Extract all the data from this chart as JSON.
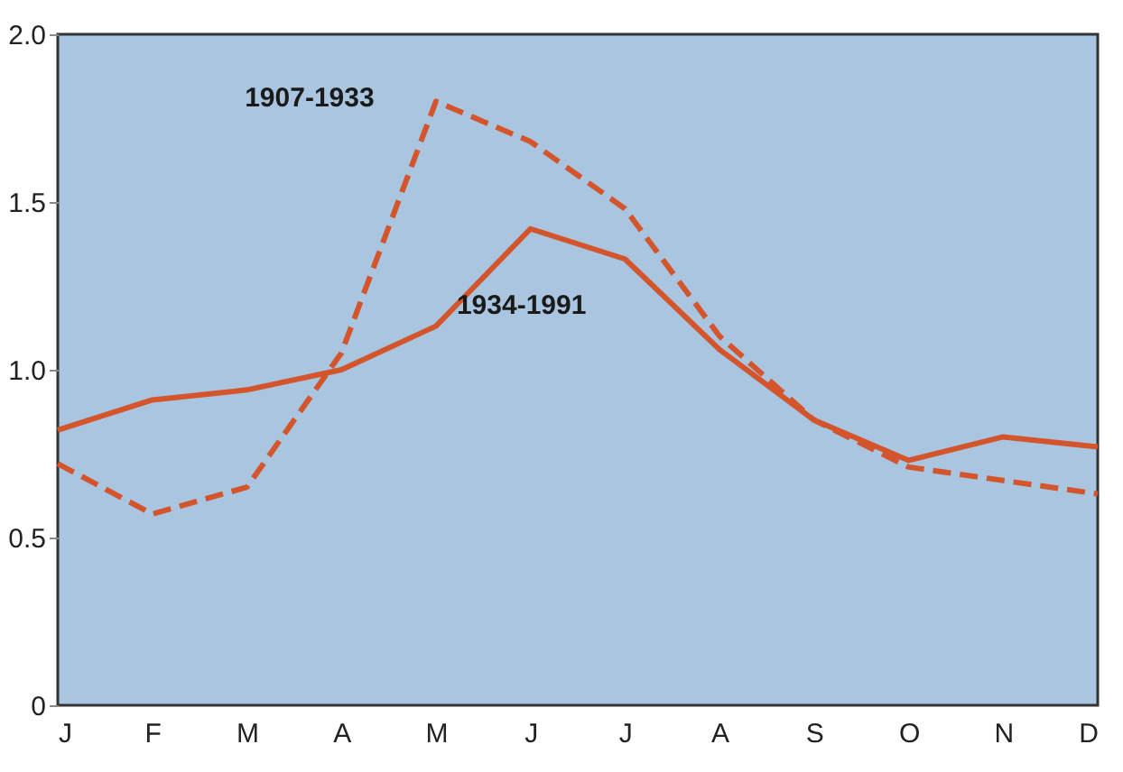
{
  "chart_data": {
    "type": "line",
    "categories": [
      "J",
      "F",
      "M",
      "A",
      "M",
      "J",
      "J",
      "A",
      "S",
      "O",
      "N",
      "D"
    ],
    "ylim": [
      0,
      2.0
    ],
    "yticks": [
      0,
      0.5,
      {
        "value": 1.0,
        "label": "1.0"
      },
      1.5,
      {
        "value": 2.0,
        "label": "2.0"
      }
    ],
    "grid": false,
    "series": [
      {
        "name": "1907-1933",
        "color": "#d4552c",
        "line_style": "dashed",
        "values": [
          0.72,
          0.57,
          0.65,
          1.05,
          1.8,
          1.68,
          1.48,
          1.1,
          0.85,
          0.71,
          0.67,
          0.63
        ]
      },
      {
        "name": "1934-1991",
        "color": "#d4552c",
        "line_style": "solid",
        "values": [
          0.82,
          0.91,
          0.94,
          1.0,
          1.13,
          1.42,
          1.33,
          1.06,
          0.85,
          0.73,
          0.8,
          0.77
        ]
      }
    ]
  }
}
